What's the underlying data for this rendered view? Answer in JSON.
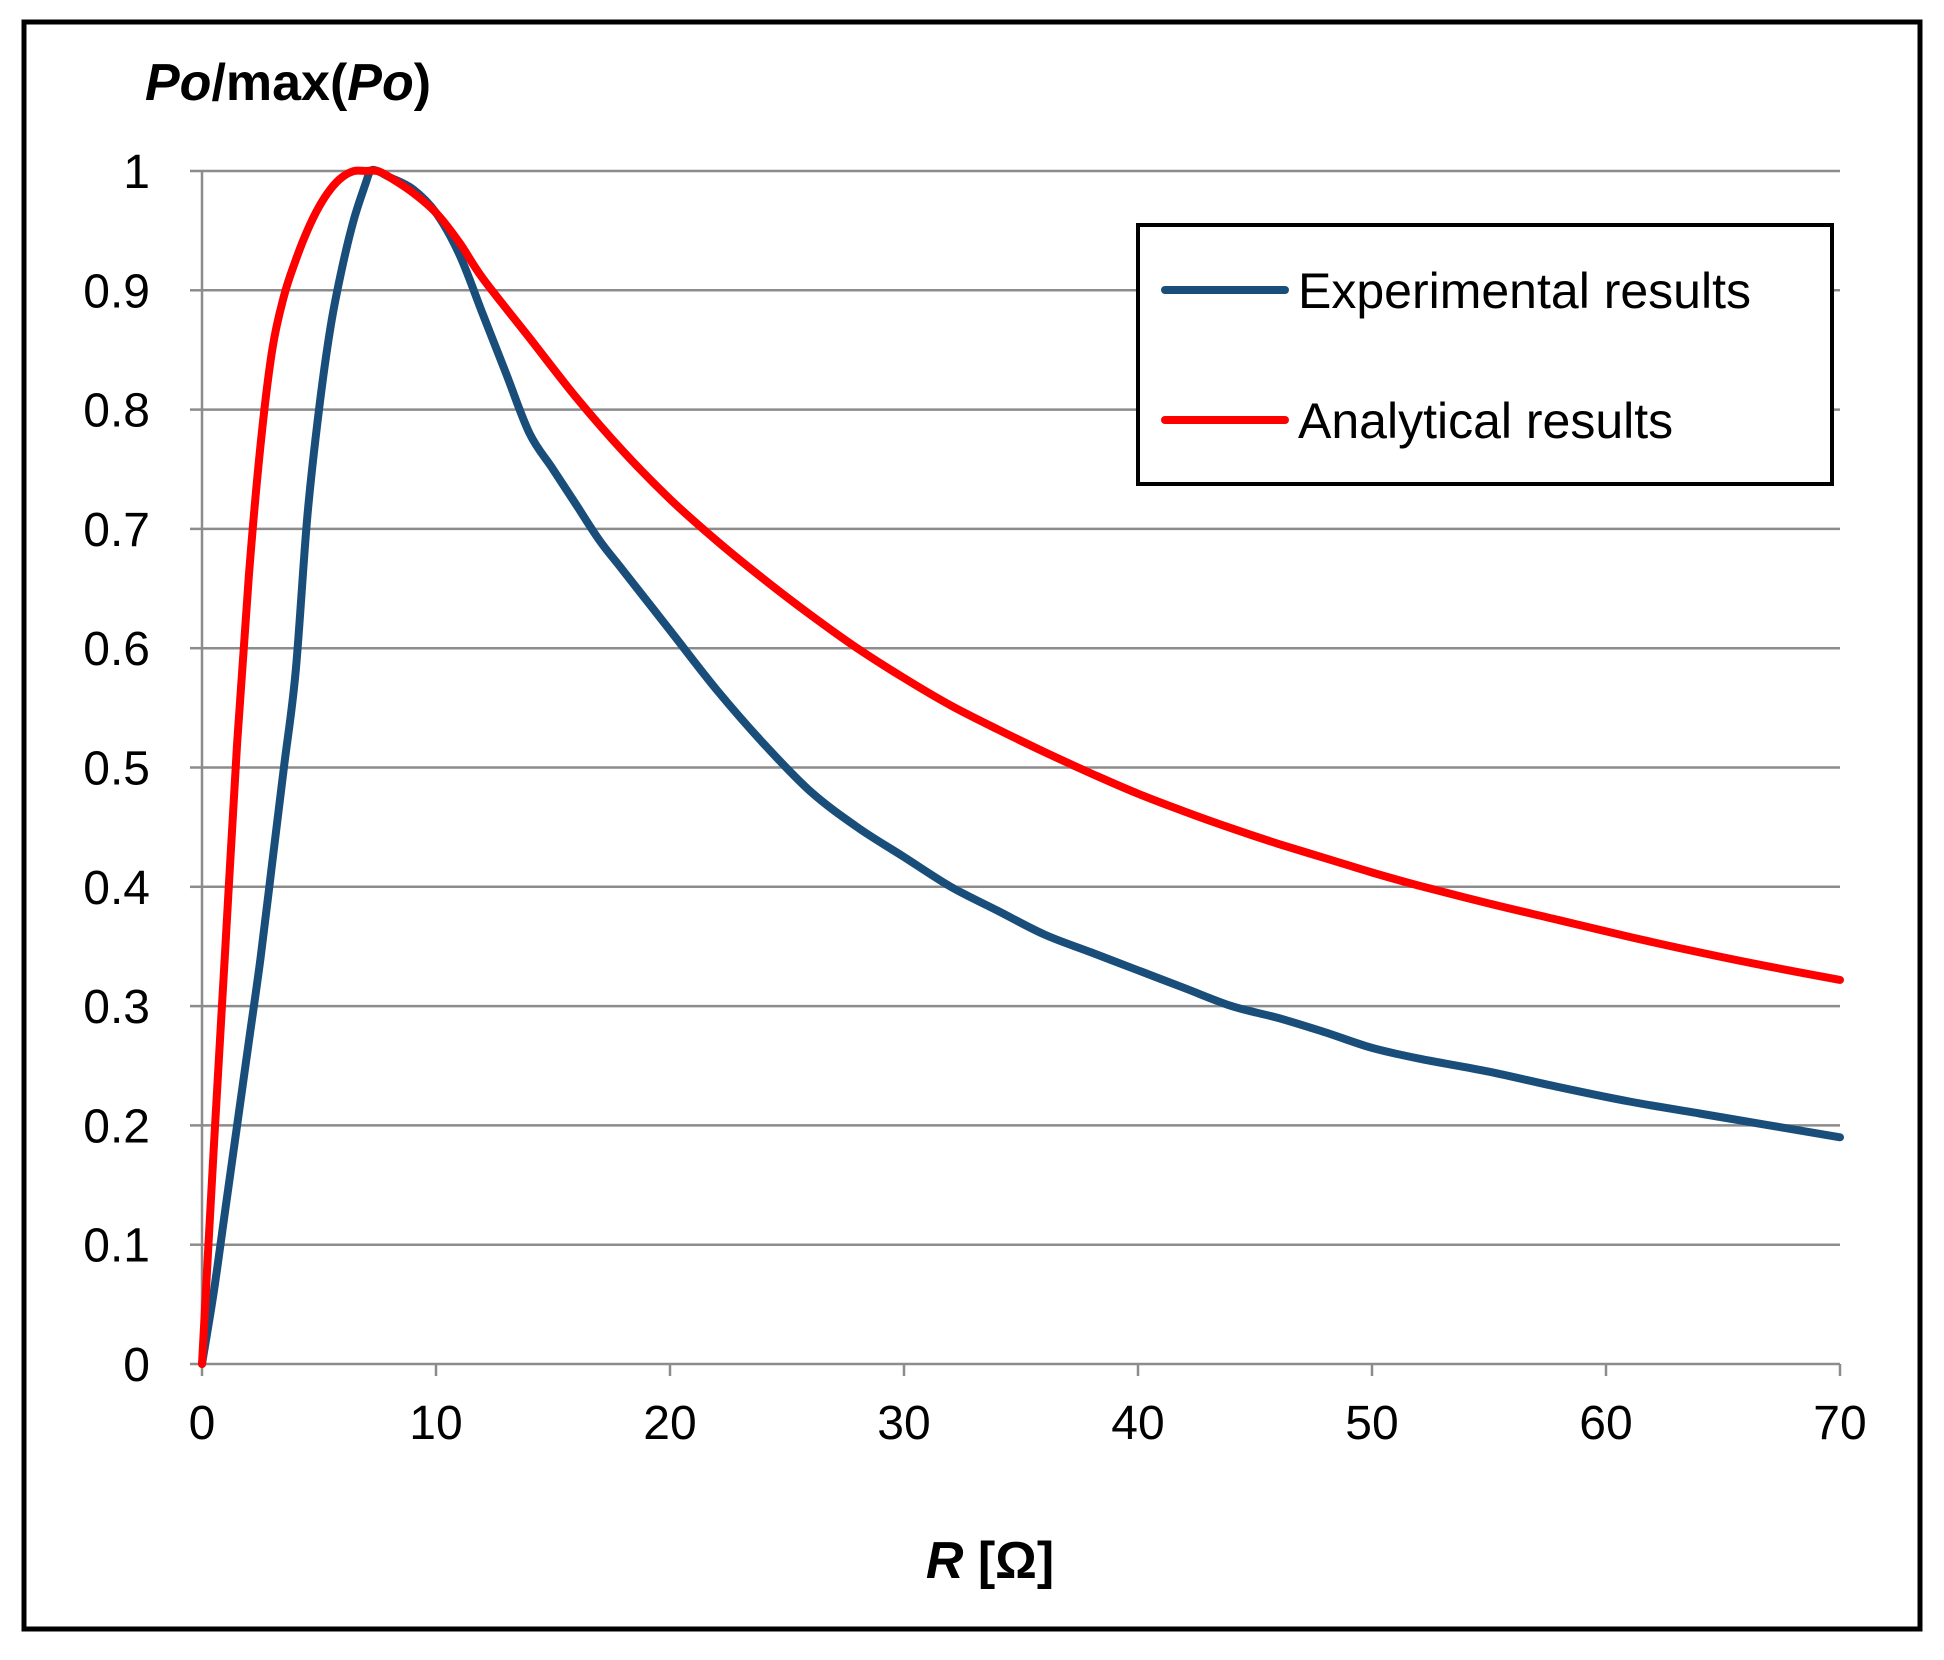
{
  "chart_data": {
    "type": "line",
    "title": "",
    "ylabel": {
      "italic": "Po",
      "normal": "/max(",
      "italic2": "Po",
      "close": ")"
    },
    "xlabel": {
      "italic": "R",
      "normal": " [Ω]"
    },
    "xlim": [
      0,
      70
    ],
    "ylim": [
      0,
      1
    ],
    "xticks": [
      "0",
      "10",
      "20",
      "30",
      "40",
      "50",
      "60",
      "70"
    ],
    "yticks": [
      "0",
      "0.1",
      "0.2",
      "0.3",
      "0.4",
      "0.5",
      "0.6",
      "0.7",
      "0.8",
      "0.9",
      "1"
    ],
    "grid": "horizontal",
    "legend_position": "top-right",
    "series": [
      {
        "name": "Experimental results",
        "color": "#1a4e7a",
        "points": [
          [
            0,
            0
          ],
          [
            0.5,
            0.06
          ],
          [
            1,
            0.13
          ],
          [
            1.5,
            0.2
          ],
          [
            2,
            0.27
          ],
          [
            2.5,
            0.34
          ],
          [
            3,
            0.42
          ],
          [
            3.5,
            0.5
          ],
          [
            4,
            0.58
          ],
          [
            4.5,
            0.71
          ],
          [
            5,
            0.8
          ],
          [
            5.5,
            0.87
          ],
          [
            6,
            0.92
          ],
          [
            6.5,
            0.96
          ],
          [
            7,
            0.99
          ],
          [
            7.2,
            1.0
          ],
          [
            7.5,
            1.0
          ],
          [
            8,
            0.995
          ],
          [
            9,
            0.985
          ],
          [
            10,
            0.965
          ],
          [
            11,
            0.93
          ],
          [
            12,
            0.88
          ],
          [
            13,
            0.83
          ],
          [
            14,
            0.78
          ],
          [
            15,
            0.75
          ],
          [
            16,
            0.72
          ],
          [
            17,
            0.69
          ],
          [
            18,
            0.665
          ],
          [
            20,
            0.615
          ],
          [
            22,
            0.565
          ],
          [
            24,
            0.52
          ],
          [
            26,
            0.48
          ],
          [
            28,
            0.45
          ],
          [
            30,
            0.425
          ],
          [
            32,
            0.4
          ],
          [
            34,
            0.38
          ],
          [
            36,
            0.36
          ],
          [
            38,
            0.345
          ],
          [
            40,
            0.33
          ],
          [
            42,
            0.315
          ],
          [
            44,
            0.3
          ],
          [
            46,
            0.29
          ],
          [
            48,
            0.278
          ],
          [
            50,
            0.265
          ],
          [
            52,
            0.256
          ],
          [
            55,
            0.245
          ],
          [
            58,
            0.232
          ],
          [
            61,
            0.22
          ],
          [
            64,
            0.21
          ],
          [
            67,
            0.2
          ],
          [
            70,
            0.19
          ]
        ]
      },
      {
        "name": "Analytical results",
        "color": "#ff0000",
        "points": [
          [
            0,
            0
          ],
          [
            0.5,
            0.18
          ],
          [
            1,
            0.35
          ],
          [
            1.5,
            0.52
          ],
          [
            2,
            0.66
          ],
          [
            2.5,
            0.77
          ],
          [
            3,
            0.85
          ],
          [
            3.5,
            0.895
          ],
          [
            4,
            0.925
          ],
          [
            4.5,
            0.95
          ],
          [
            5,
            0.97
          ],
          [
            5.5,
            0.985
          ],
          [
            6,
            0.995
          ],
          [
            6.5,
            1.0
          ],
          [
            7,
            1.0
          ],
          [
            7.5,
            1.0
          ],
          [
            8,
            0.995
          ],
          [
            9,
            0.982
          ],
          [
            10,
            0.965
          ],
          [
            11,
            0.94
          ],
          [
            12,
            0.91
          ],
          [
            14,
            0.86
          ],
          [
            16,
            0.81
          ],
          [
            18,
            0.765
          ],
          [
            20,
            0.725
          ],
          [
            22,
            0.69
          ],
          [
            24,
            0.658
          ],
          [
            26,
            0.628
          ],
          [
            28,
            0.6
          ],
          [
            30,
            0.575
          ],
          [
            32,
            0.552
          ],
          [
            34,
            0.532
          ],
          [
            36,
            0.513
          ],
          [
            38,
            0.495
          ],
          [
            40,
            0.478
          ],
          [
            42,
            0.463
          ],
          [
            44,
            0.449
          ],
          [
            46,
            0.436
          ],
          [
            48,
            0.424
          ],
          [
            50,
            0.412
          ],
          [
            52,
            0.401
          ],
          [
            55,
            0.386
          ],
          [
            58,
            0.372
          ],
          [
            61,
            0.358
          ],
          [
            64,
            0.345
          ],
          [
            67,
            0.333
          ],
          [
            70,
            0.322
          ]
        ]
      }
    ]
  }
}
